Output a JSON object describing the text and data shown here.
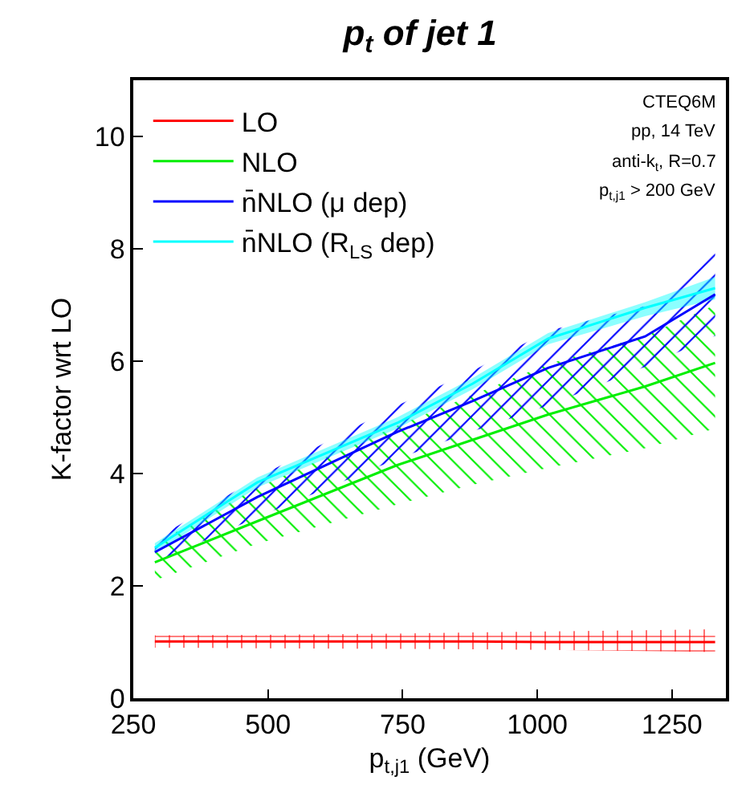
{
  "chart_data": {
    "type": "line",
    "title": "p$_{t}$ of jet 1",
    "xlabel": "p$_{t,j1}$ (GeV)",
    "ylabel": "K-factor wrt LO",
    "annotations": [
      "CTEQ6M",
      "pp, 14 TeV",
      "anti-k$_{t}$, R=0.7",
      "p$_{t,j1}$ > 200 GeV"
    ],
    "x": [
      290,
      480,
      740,
      880,
      1020,
      1200,
      1330
    ],
    "series": [
      {
        "name": "LO",
        "color": "#ff0000",
        "values": [
          1.01,
          1.01,
          1.01,
          1.01,
          1.0,
          1.0,
          1.0
        ],
        "lower": [
          0.9,
          0.89,
          0.88,
          0.87,
          0.86,
          0.84,
          0.82
        ],
        "upper": [
          1.12,
          1.13,
          1.15,
          1.17,
          1.19,
          1.21,
          1.23
        ]
      },
      {
        "name": "NLO",
        "color": "#00ee00",
        "values": [
          2.42,
          3.15,
          4.15,
          4.6,
          5.05,
          5.55,
          5.97
        ],
        "lower": [
          2.1,
          2.75,
          3.45,
          3.8,
          4.1,
          4.45,
          4.8
        ],
        "upper": [
          2.75,
          3.75,
          4.85,
          5.4,
          5.95,
          6.45,
          7.0
        ]
      },
      {
        "name": "n̄NLO (μ dep)",
        "color": "#0000ff",
        "values": [
          2.6,
          3.58,
          4.74,
          5.29,
          5.88,
          6.44,
          7.19
        ],
        "lower": [
          2.42,
          3.22,
          4.26,
          4.75,
          5.21,
          5.9,
          6.45
        ],
        "upper": [
          2.82,
          3.93,
          5.21,
          5.83,
          6.54,
          6.98,
          7.92
        ]
      },
      {
        "name": "n̄NLO (R$_{LS}$ dep)",
        "color": "#00ffff",
        "values": [
          2.68,
          3.84,
          4.9,
          5.6,
          6.4,
          6.95,
          7.3
        ],
        "lower": [
          2.58,
          3.75,
          4.8,
          5.5,
          6.3,
          6.8,
          7.1
        ],
        "upper": [
          2.76,
          3.93,
          5.0,
          5.7,
          6.5,
          7.05,
          7.5
        ]
      }
    ],
    "xlim": [
      250,
      1350
    ],
    "ylim": [
      0,
      11
    ],
    "xticks": [
      250,
      500,
      750,
      1000,
      1250
    ],
    "yticks": [
      0,
      2,
      4,
      6,
      8,
      10
    ],
    "grid": false,
    "legend": "top left"
  }
}
